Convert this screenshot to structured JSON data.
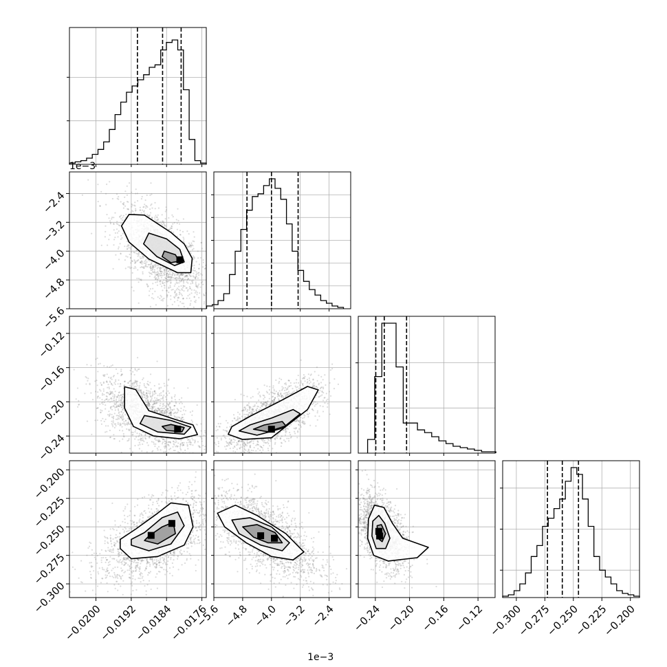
{
  "chart_data": {
    "type": "corner",
    "plot_style": {
      "grid": true,
      "quantile_lines": "dashed-black",
      "histogram_style": "step-black",
      "contour_color": "#000000",
      "scatter_color": "#808080",
      "density_colormap": "greys"
    },
    "parameters": [
      {
        "range": [
          -0.0206,
          -0.0175
        ],
        "ticks": [
          -0.02,
          -0.0192,
          -0.0184,
          -0.0176
        ],
        "tick_labels": [
          "−0.0200",
          "−0.0192",
          "−0.0184",
          "−0.0176"
        ],
        "quantiles": [
          -0.01906,
          -0.01849,
          -0.01807
        ]
      },
      {
        "range": [
          -0.0056,
          -0.0018
        ],
        "ticks": [
          -0.0056,
          -0.0048,
          -0.004,
          -0.0032,
          -0.0024
        ],
        "tick_labels": [
          "−5.6",
          "−4.8",
          "−4.0",
          "−3.2",
          "−2.4"
        ],
        "multiplier": "1e−3",
        "quantiles": [
          -0.00468,
          -0.004,
          -0.00326
        ]
      },
      {
        "range": [
          -0.26,
          -0.1
        ],
        "ticks": [
          -0.24,
          -0.2,
          -0.16,
          -0.12
        ],
        "tick_labels": [
          "−0.24",
          "−0.20",
          "−0.16",
          "−0.12"
        ],
        "quantiles": [
          -0.2395,
          -0.2296,
          -0.2035
        ]
      },
      {
        "range": [
          -0.312,
          -0.192
        ],
        "ticks": [
          -0.3,
          -0.275,
          -0.25,
          -0.225,
          -0.2
        ],
        "tick_labels": [
          "−0.300",
          "−0.275",
          "−0.250",
          "−0.225",
          "−0.200"
        ],
        "quantiles": [
          -0.2727,
          -0.2597,
          -0.2455
        ]
      }
    ],
    "histograms": [
      {
        "param": 0,
        "edges": [
          -0.0206,
          -0.0175
        ],
        "counts": [
          1,
          2,
          3,
          5,
          8,
          12,
          18,
          28,
          40,
          50,
          58,
          63,
          68,
          72,
          78,
          80,
          92,
          98,
          100,
          92,
          60,
          20,
          3,
          1
        ],
        "ymax": 110,
        "yticks": [
          35,
          70
        ]
      },
      {
        "param": 1,
        "edges": [
          -0.0058,
          -0.002
        ],
        "counts": [
          2,
          3,
          6,
          11,
          25,
          42,
          58,
          72,
          82,
          84,
          90,
          95,
          88,
          80,
          62,
          42,
          28,
          20,
          14,
          10,
          6,
          4,
          2,
          1
        ],
        "ymax": 100,
        "yticks": [
          16.7,
          33.3,
          50,
          66.7,
          83.3
        ]
      },
      {
        "param": 2,
        "edges": [
          -0.2491,
          -0.0991
        ],
        "counts": [
          10,
          56,
          95,
          95,
          63,
          22,
          22,
          17,
          15,
          12,
          9,
          7,
          5,
          4,
          3,
          2,
          1,
          1
        ],
        "ymax": 100,
        "yticks": [
          33,
          66
        ]
      },
      {
        "param": 3,
        "edges": [
          -0.312,
          -0.192
        ],
        "counts": [
          1,
          2,
          5,
          10,
          18,
          30,
          38,
          52,
          58,
          65,
          72,
          85,
          95,
          90,
          72,
          52,
          30,
          20,
          15,
          10,
          5,
          3,
          2,
          1
        ],
        "ymax": 100,
        "yticks": [
          20,
          50,
          80
        ]
      }
    ],
    "pairs": [
      {
        "x_param": 0,
        "y_param": 1,
        "center": [
          -0.01855,
          -0.00404
        ],
        "sd": [
          0.000467,
          0.00067
        ],
        "corr": -0.6,
        "contours": [
          [
            [
              -0.01925,
              -0.00298
            ],
            [
              -0.0189,
              -0.003
            ],
            [
              -0.0183,
              -0.00348
            ],
            [
              -0.018,
              -0.0038
            ],
            [
              -0.01782,
              -0.0042
            ],
            [
              -0.01785,
              -0.0046
            ],
            [
              -0.01815,
              -0.0046
            ],
            [
              -0.0188,
              -0.00422
            ],
            [
              -0.01925,
              -0.00375
            ],
            [
              -0.01942,
              -0.0033
            ]
          ],
          [
            [
              -0.0188,
              -0.0035
            ],
            [
              -0.0184,
              -0.00366
            ],
            [
              -0.0181,
              -0.00395
            ],
            [
              -0.018,
              -0.0043
            ],
            [
              -0.01822,
              -0.0044
            ],
            [
              -0.01862,
              -0.00415
            ],
            [
              -0.01892,
              -0.0038
            ]
          ],
          [
            [
              -0.01845,
              -0.004
            ],
            [
              -0.0182,
              -0.0041
            ],
            [
              -0.01812,
              -0.00428
            ],
            [
              -0.0183,
              -0.00432
            ],
            [
              -0.0185,
              -0.00415
            ]
          ]
        ],
        "peaks": [
          [
            -0.0181,
            -0.00424
          ]
        ]
      },
      {
        "x_param": 0,
        "y_param": 2,
        "center": [
          -0.01882,
          -0.2155
        ],
        "sd": [
          0.00057,
          0.0225
        ],
        "corr": -0.55,
        "contours": [
          [
            [
              -0.01935,
              -0.1824
            ],
            [
              -0.0191,
              -0.1856
            ],
            [
              -0.0188,
              -0.2104
            ],
            [
              -0.0182,
              -0.2207
            ],
            [
              -0.0178,
              -0.227
            ],
            [
              -0.0177,
              -0.2383
            ],
            [
              -0.0181,
              -0.2432
            ],
            [
              -0.0187,
              -0.2398
            ],
            [
              -0.01915,
              -0.2288
            ],
            [
              -0.01935,
              -0.2074
            ]
          ],
          [
            [
              -0.0189,
              -0.216
            ],
            [
              -0.0183,
              -0.2218
            ],
            [
              -0.01785,
              -0.2296
            ],
            [
              -0.018,
              -0.2378
            ],
            [
              -0.0186,
              -0.2352
            ],
            [
              -0.019,
              -0.2254
            ]
          ],
          [
            [
              -0.0183,
              -0.2265
            ],
            [
              -0.018,
              -0.23
            ],
            [
              -0.01805,
              -0.235
            ],
            [
              -0.0184,
              -0.2335
            ],
            [
              -0.0185,
              -0.2288
            ]
          ]
        ],
        "peaks": [
          [
            -0.01815,
            -0.232
          ]
        ]
      },
      {
        "x_param": 1,
        "y_param": 2,
        "center": [
          -0.004,
          -0.2185
        ],
        "sd": [
          0.00068,
          0.021
        ],
        "corr": 0.7,
        "contours": [
          [
            [
              -0.0052,
              -0.238
            ],
            [
              -0.0048,
              -0.244
            ],
            [
              -0.004,
              -0.242
            ],
            [
              -0.003,
              -0.209
            ],
            [
              -0.0027,
              -0.186
            ],
            [
              -0.003,
              -0.182
            ],
            [
              -0.0038,
              -0.2
            ],
            [
              -0.0046,
              -0.217
            ],
            [
              -0.0051,
              -0.229
            ]
          ],
          [
            [
              -0.0049,
              -0.234
            ],
            [
              -0.0044,
              -0.239
            ],
            [
              -0.0037,
              -0.231
            ],
            [
              -0.0032,
              -0.214
            ],
            [
              -0.0034,
              -0.209
            ],
            [
              -0.004,
              -0.219
            ],
            [
              -0.0046,
              -0.227
            ]
          ],
          [
            [
              -0.0045,
              -0.232
            ],
            [
              -0.0041,
              -0.235
            ],
            [
              -0.0036,
              -0.228
            ],
            [
              -0.0037,
              -0.223
            ],
            [
              -0.0042,
              -0.227
            ]
          ]
        ],
        "peaks": [
          [
            -0.004,
            -0.232
          ]
        ]
      },
      {
        "x_param": 0,
        "y_param": 3,
        "center": [
          -0.01865,
          -0.2598
        ],
        "sd": [
          0.00062,
          0.0188
        ],
        "corr": 0.55,
        "contours": [
          [
            [
              -0.01945,
              -0.269
            ],
            [
              -0.0192,
              -0.278
            ],
            [
              -0.0186,
              -0.276
            ],
            [
              -0.018,
              -0.266
            ],
            [
              -0.0178,
              -0.25
            ],
            [
              -0.0179,
              -0.231
            ],
            [
              -0.0183,
              -0.229
            ],
            [
              -0.0186,
              -0.238
            ],
            [
              -0.0191,
              -0.252
            ],
            [
              -0.01945,
              -0.261
            ]
          ],
          [
            [
              -0.0192,
              -0.266
            ],
            [
              -0.0188,
              -0.271
            ],
            [
              -0.0183,
              -0.265
            ],
            [
              -0.018,
              -0.249
            ],
            [
              -0.01815,
              -0.237
            ],
            [
              -0.0185,
              -0.242
            ],
            [
              -0.0189,
              -0.255
            ],
            [
              -0.0192,
              -0.261
            ]
          ],
          [
            [
              -0.0189,
              -0.262
            ],
            [
              -0.0186,
              -0.265
            ],
            [
              -0.0182,
              -0.256
            ],
            [
              -0.01825,
              -0.246
            ],
            [
              -0.0185,
              -0.25
            ],
            [
              -0.0188,
              -0.258
            ]
          ]
        ],
        "peaks": [
          [
            -0.01828,
            -0.247
          ],
          [
            -0.01875,
            -0.2575
          ]
        ]
      },
      {
        "x_param": 1,
        "y_param": 3,
        "center": [
          -0.00415,
          -0.258
        ],
        "sd": [
          0.00075,
          0.0195
        ],
        "corr": -0.65,
        "contours": [
          [
            [
              -0.0055,
              -0.238
            ],
            [
              -0.005,
              -0.231
            ],
            [
              -0.0044,
              -0.24
            ],
            [
              -0.0036,
              -0.256
            ],
            [
              -0.0031,
              -0.272
            ],
            [
              -0.0034,
              -0.279
            ],
            [
              -0.004,
              -0.276
            ],
            [
              -0.0047,
              -0.264
            ],
            [
              -0.0053,
              -0.25
            ]
          ],
          [
            [
              -0.0051,
              -0.244
            ],
            [
              -0.0046,
              -0.242
            ],
            [
              -0.004,
              -0.25
            ],
            [
              -0.0035,
              -0.264
            ],
            [
              -0.0037,
              -0.271
            ],
            [
              -0.0043,
              -0.266
            ],
            [
              -0.0049,
              -0.256
            ]
          ],
          [
            [
              -0.0048,
              -0.25
            ],
            [
              -0.0044,
              -0.248
            ],
            [
              -0.0039,
              -0.255
            ],
            [
              -0.0037,
              -0.264
            ],
            [
              -0.0041,
              -0.264
            ],
            [
              -0.0045,
              -0.259
            ]
          ]
        ],
        "peaks": [
          [
            -0.0043,
            -0.2578
          ],
          [
            -0.00392,
            -0.26
          ]
        ]
      },
      {
        "x_param": 2,
        "y_param": 3,
        "center": [
          -0.233,
          -0.254
        ],
        "sd": [
          0.015,
          0.0165
        ],
        "corr": -0.5,
        "contours": [
          [
            [
              -0.248,
              -0.243
            ],
            [
              -0.241,
              -0.231
            ],
            [
              -0.23,
              -0.233
            ],
            [
              -0.22,
              -0.247
            ],
            [
              -0.208,
              -0.26
            ],
            [
              -0.178,
              -0.268
            ],
            [
              -0.191,
              -0.277
            ],
            [
              -0.225,
              -0.28
            ],
            [
              -0.242,
              -0.275
            ],
            [
              -0.249,
              -0.26
            ]
          ],
          [
            [
              -0.243,
              -0.245
            ],
            [
              -0.236,
              -0.24
            ],
            [
              -0.229,
              -0.247
            ],
            [
              -0.223,
              -0.26
            ],
            [
              -0.228,
              -0.269
            ],
            [
              -0.239,
              -0.269
            ],
            [
              -0.244,
              -0.258
            ]
          ],
          [
            [
              -0.238,
              -0.249
            ],
            [
              -0.233,
              -0.248
            ],
            [
              -0.228,
              -0.256
            ],
            [
              -0.232,
              -0.263
            ],
            [
              -0.237,
              -0.26
            ]
          ]
        ],
        "peaks": [
          [
            -0.236,
            -0.254
          ],
          [
            -0.235,
            -0.258
          ]
        ]
      }
    ]
  }
}
